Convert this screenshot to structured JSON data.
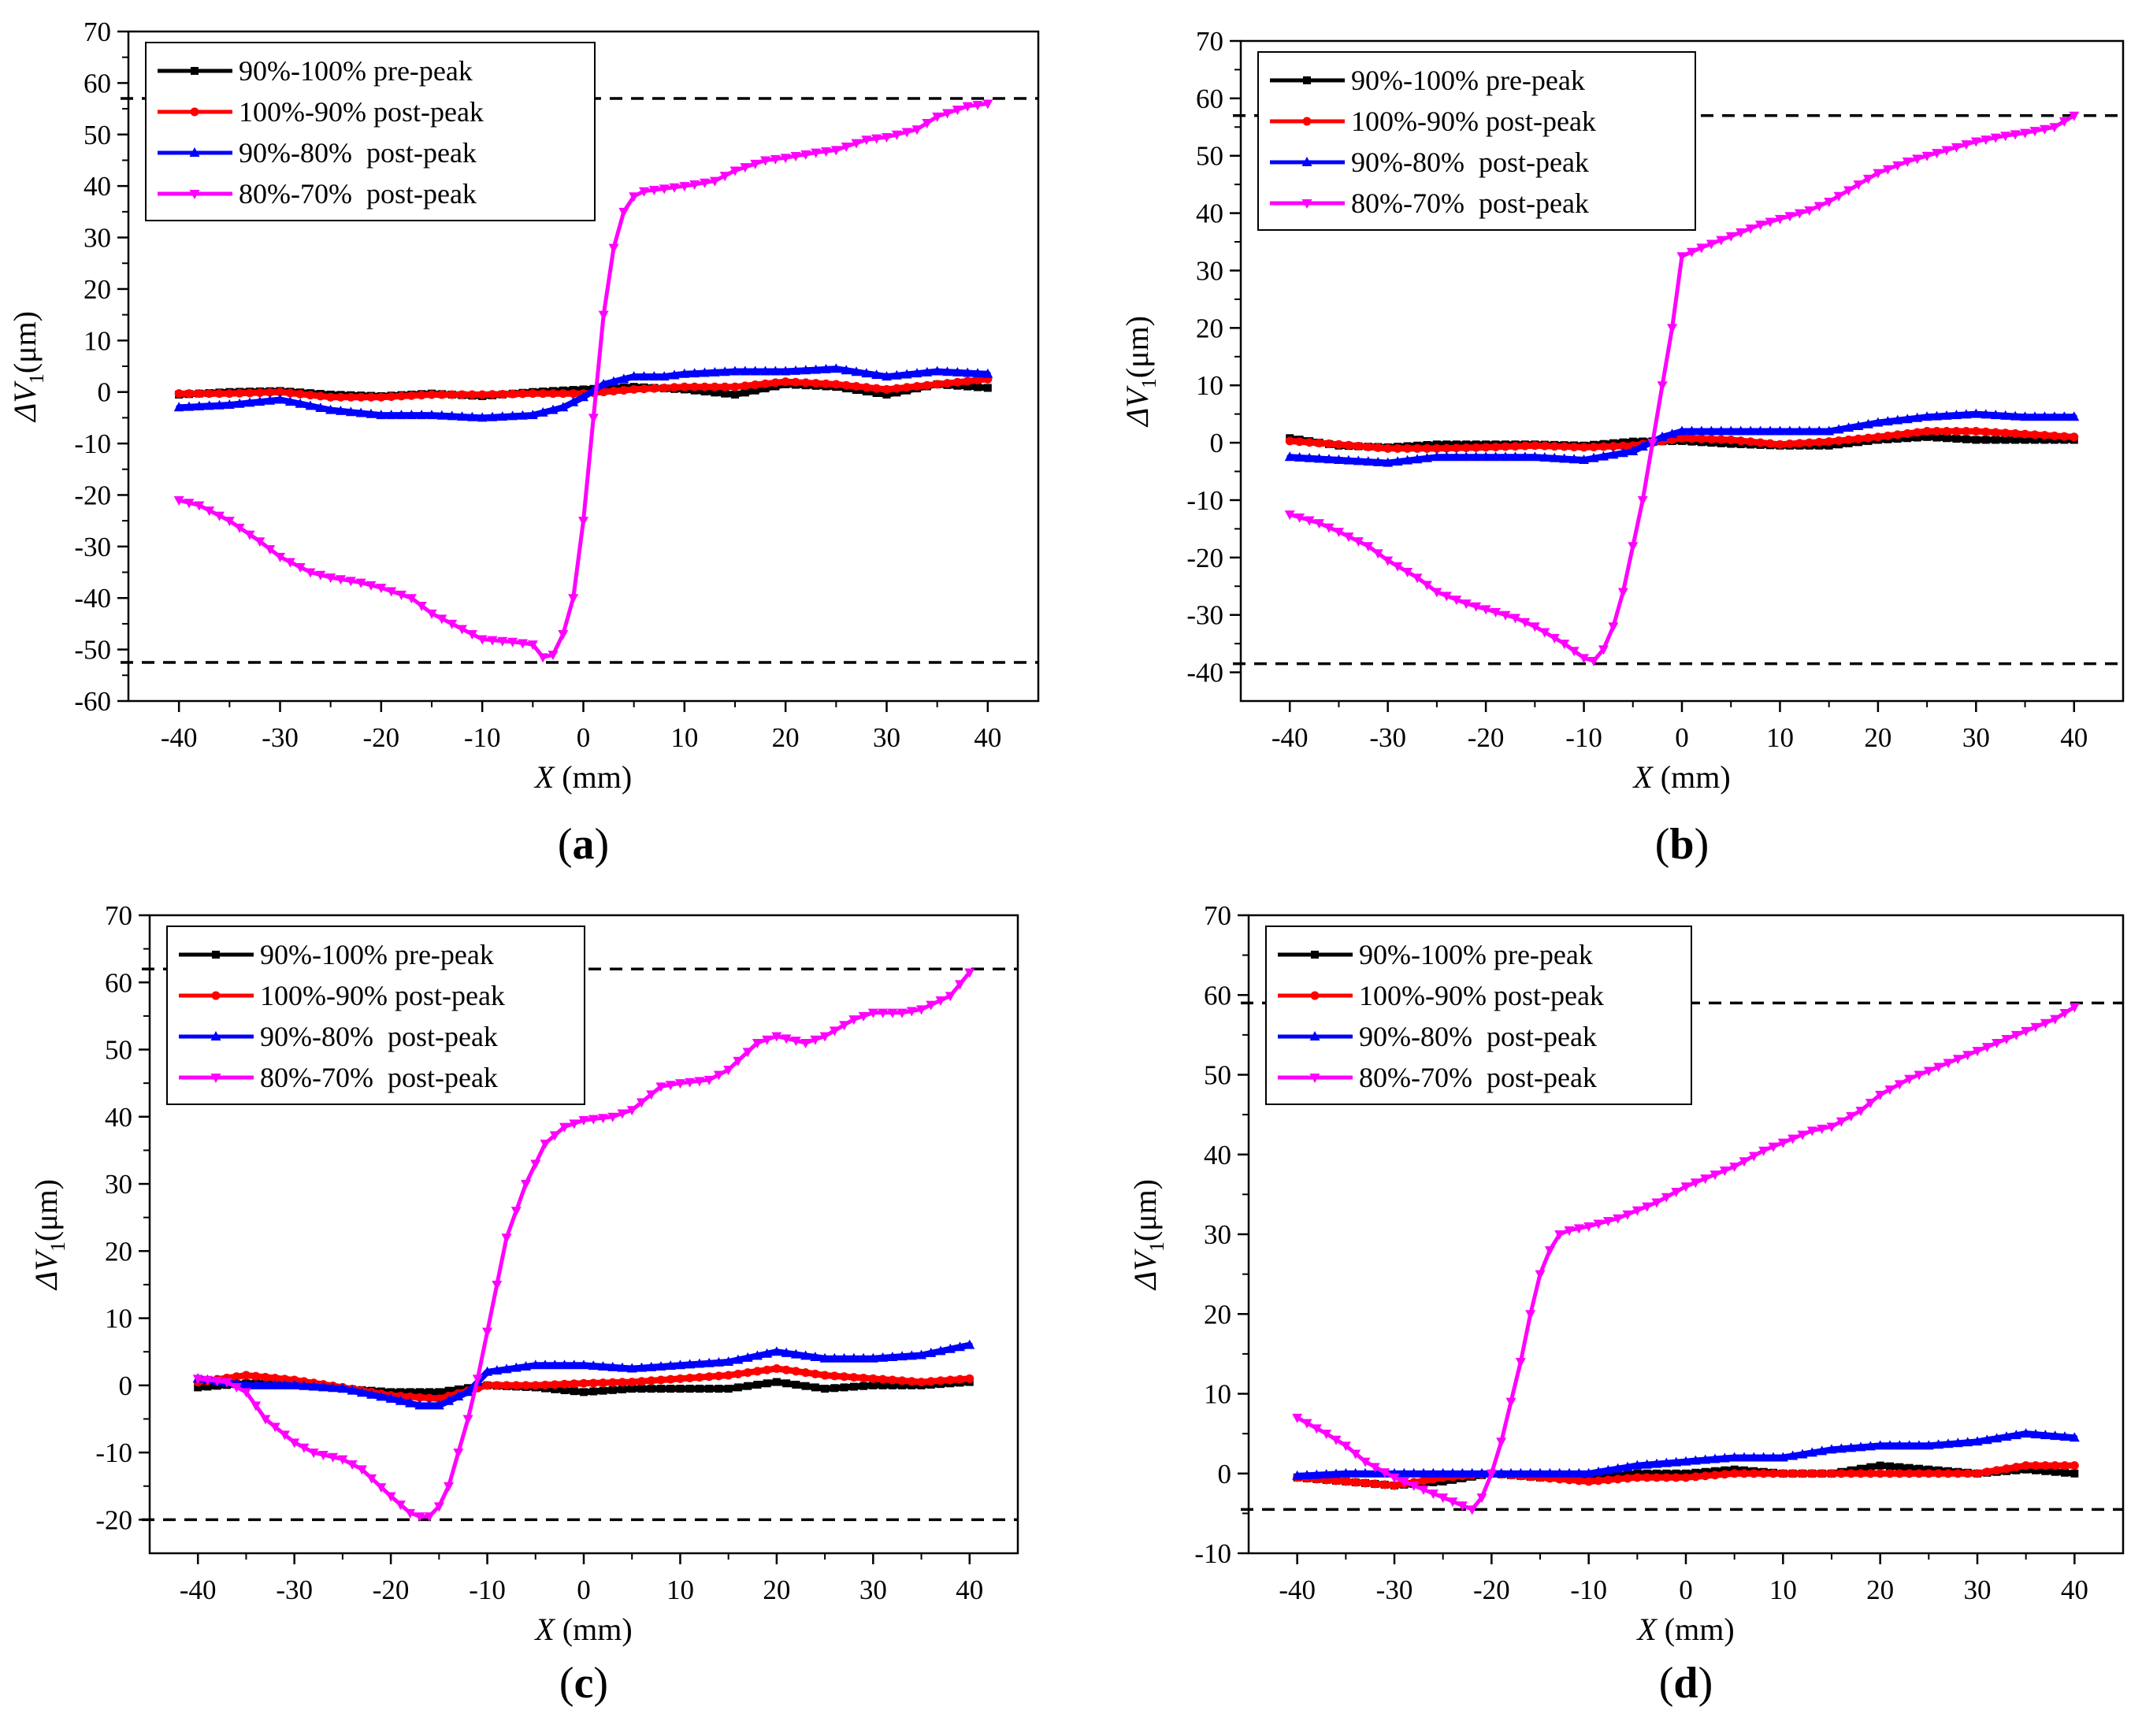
{
  "figure": {
    "xlabel": "X (mm)",
    "ylabel_main": "ΔV",
    "ylabel_sub": "1",
    "ylabel_unit": "(μm)"
  },
  "legend_entries": [
    "90%-100% pre-peak",
    "100%-90% post-peak",
    "90%-80%  post-peak",
    "80%-70%  post-peak"
  ],
  "colors": {
    "pre_peak_90_100": "#000000",
    "post_peak_100_90": "#ff0000",
    "post_peak_90_80": "#0000ff",
    "post_peak_80_70": "#ff00ff",
    "dashed_line": "#000000"
  },
  "chart_data": [
    {
      "panel": "(a)",
      "type": "line",
      "xlabel": "X (mm)",
      "ylabel": "ΔV1 (μm)",
      "xlim": [
        -45,
        45
      ],
      "ylim": [
        -60,
        70
      ],
      "xticks": [
        -40,
        -30,
        -20,
        -10,
        0,
        10,
        20,
        30,
        40
      ],
      "yticks": [
        -60,
        -50,
        -40,
        -30,
        -20,
        -10,
        0,
        10,
        20,
        30,
        40,
        50,
        60,
        70
      ],
      "hlines": [
        57,
        -52.5
      ],
      "series": [
        {
          "name": "90%-100% pre-peak",
          "x": [
            -40,
            -35,
            -30,
            -25,
            -20,
            -15,
            -10,
            -5,
            0,
            5,
            10,
            15,
            20,
            25,
            30,
            35,
            40
          ],
          "y": [
            -0.5,
            0,
            0.2,
            -0.5,
            -0.8,
            -0.3,
            -0.8,
            0,
            0.5,
            1,
            0.5,
            -0.5,
            1.5,
            1,
            -0.5,
            1.5,
            0.8
          ]
        },
        {
          "name": "100%-90% post-peak",
          "x": [
            -40,
            -35,
            -30,
            -25,
            -20,
            -15,
            -10,
            -5,
            0,
            5,
            10,
            15,
            20,
            25,
            30,
            35,
            40
          ],
          "y": [
            -0.3,
            -0.3,
            0,
            -1,
            -1,
            -0.5,
            -0.5,
            -0.3,
            -0.3,
            0.5,
            1,
            1,
            2,
            1.5,
            0.5,
            1.5,
            2.5
          ]
        },
        {
          "name": "90%-80%  post-peak",
          "x": [
            -40,
            -35,
            -30,
            -25,
            -20,
            -15,
            -10,
            -5,
            -2,
            0,
            2,
            5,
            8,
            10,
            15,
            20,
            25,
            30,
            35,
            40
          ],
          "y": [
            -3,
            -2.5,
            -1.5,
            -3.5,
            -4.5,
            -4.5,
            -5,
            -4.5,
            -3,
            -1,
            1.5,
            3,
            3,
            3.5,
            4,
            4,
            4.5,
            3,
            4,
            3.5
          ]
        },
        {
          "name": "80%-70%  post-peak",
          "x": [
            -40,
            -38,
            -35,
            -32,
            -30,
            -27,
            -25,
            -22,
            -20,
            -17,
            -15,
            -12,
            -10,
            -7,
            -5,
            -4,
            -3,
            -2,
            -1,
            0,
            1,
            2,
            3,
            4,
            5,
            6,
            8,
            10,
            13,
            15,
            18,
            20,
            23,
            25,
            28,
            30,
            33,
            35,
            38,
            40
          ],
          "y": [
            -21,
            -22,
            -25,
            -29,
            -32,
            -35,
            -36,
            -37,
            -38,
            -40,
            -43,
            -46,
            -48,
            -48.5,
            -49,
            -51.5,
            -51,
            -47,
            -40,
            -25,
            -5,
            15,
            28,
            35,
            38,
            39,
            39.5,
            40,
            41,
            43,
            45,
            45.5,
            46.5,
            47,
            49,
            49.5,
            51,
            53.5,
            55.5,
            56
          ]
        }
      ]
    },
    {
      "panel": "(b)",
      "type": "line",
      "xlabel": "X (mm)",
      "ylabel": "ΔV1 (μm)",
      "xlim": [
        -45,
        45
      ],
      "ylim": [
        -45,
        70
      ],
      "xticks": [
        -40,
        -30,
        -20,
        -10,
        0,
        10,
        20,
        30,
        40
      ],
      "yticks": [
        -40,
        -30,
        -20,
        -10,
        0,
        10,
        20,
        30,
        40,
        50,
        60,
        70
      ],
      "hlines": [
        57,
        -38.5
      ],
      "series": [
        {
          "name": "90%-100% pre-peak",
          "x": [
            -40,
            -35,
            -30,
            -25,
            -20,
            -15,
            -10,
            -5,
            0,
            5,
            10,
            15,
            20,
            25,
            30,
            35,
            40
          ],
          "y": [
            0.8,
            -0.5,
            -0.8,
            -0.3,
            -0.3,
            -0.3,
            -0.5,
            0.2,
            0.3,
            -0.2,
            -0.5,
            -0.5,
            0.5,
            1,
            0.5,
            0.5,
            0.5
          ]
        },
        {
          "name": "100%-90% post-peak",
          "x": [
            -40,
            -35,
            -30,
            -25,
            -20,
            -15,
            -10,
            -5,
            0,
            5,
            10,
            15,
            20,
            25,
            30,
            35,
            40
          ],
          "y": [
            0.3,
            -0.3,
            -1,
            -1,
            -0.8,
            -0.5,
            -0.8,
            -0.5,
            0.8,
            0.5,
            -0.3,
            0.2,
            1,
            2,
            2,
            1.5,
            1
          ]
        },
        {
          "name": "90%-80%  post-peak",
          "x": [
            -40,
            -35,
            -30,
            -25,
            -20,
            -15,
            -10,
            -5,
            -2,
            0,
            5,
            10,
            15,
            20,
            25,
            30,
            35,
            40
          ],
          "y": [
            -2.5,
            -3,
            -3.5,
            -2.5,
            -2.5,
            -2.5,
            -3,
            -1.5,
            1,
            2,
            2,
            2,
            2,
            3.5,
            4.5,
            5,
            4.5,
            4.5
          ]
        },
        {
          "name": "80%-70%  post-peak",
          "x": [
            -40,
            -37,
            -35,
            -32,
            -30,
            -27,
            -25,
            -22,
            -20,
            -17,
            -15,
            -12,
            -10,
            -9,
            -8,
            -7,
            -6,
            -5,
            -4,
            -3,
            -2,
            -1,
            0,
            2,
            5,
            8,
            10,
            13,
            15,
            18,
            20,
            23,
            25,
            28,
            30,
            33,
            35,
            38,
            40
          ],
          "y": [
            -12.5,
            -14,
            -15.5,
            -18,
            -20.5,
            -23.5,
            -26,
            -28,
            -29,
            -30.5,
            -32,
            -35,
            -37.5,
            -38,
            -36,
            -32,
            -26,
            -18,
            -10,
            0,
            10,
            20,
            32.5,
            34,
            36,
            38,
            39,
            40.5,
            42,
            45,
            47,
            49,
            50,
            51.5,
            52.5,
            53.5,
            54,
            55,
            57
          ]
        }
      ]
    },
    {
      "panel": "(c)",
      "type": "line",
      "xlabel": "X (mm)",
      "ylabel": "ΔV1 (μm)",
      "xlim": [
        -45,
        45
      ],
      "ylim": [
        -25,
        70
      ],
      "xticks": [
        -40,
        -30,
        -20,
        -10,
        0,
        10,
        20,
        30,
        40
      ],
      "yticks": [
        -20,
        -10,
        0,
        10,
        20,
        30,
        40,
        50,
        60,
        70
      ],
      "hlines": [
        62,
        -20
      ],
      "series": [
        {
          "name": "90%-100% pre-peak",
          "x": [
            -40,
            -35,
            -30,
            -25,
            -20,
            -15,
            -10,
            -5,
            0,
            5,
            10,
            15,
            20,
            25,
            30,
            35,
            40
          ],
          "y": [
            -0.3,
            0.3,
            0.3,
            -0.5,
            -1,
            -1,
            0,
            -0.3,
            -1,
            -0.5,
            -0.5,
            -0.5,
            0.5,
            -0.5,
            0,
            0,
            0.5
          ]
        },
        {
          "name": "100%-90% post-peak",
          "x": [
            -40,
            -35,
            -30,
            -25,
            -20,
            -15,
            -10,
            -5,
            0,
            5,
            10,
            15,
            20,
            25,
            30,
            35,
            40
          ],
          "y": [
            0.5,
            1.5,
            0.8,
            -0.3,
            -1.5,
            -2,
            0,
            0,
            0.3,
            0.5,
            1,
            1.5,
            2.5,
            1.5,
            1,
            0.5,
            1
          ]
        },
        {
          "name": "90%-80%  post-peak",
          "x": [
            -40,
            -35,
            -30,
            -25,
            -20,
            -17,
            -15,
            -12,
            -10,
            -5,
            0,
            5,
            10,
            15,
            20,
            25,
            30,
            35,
            40
          ],
          "y": [
            1,
            0,
            0,
            -0.5,
            -2,
            -3,
            -3,
            -1,
            2,
            3,
            3,
            2.5,
            3,
            3.5,
            5,
            4,
            4,
            4.5,
            6
          ]
        },
        {
          "name": "80%-70%  post-peak",
          "x": [
            -40,
            -37,
            -35,
            -33,
            -30,
            -28,
            -25,
            -23,
            -20,
            -18,
            -17,
            -16,
            -15,
            -14,
            -13,
            -12,
            -11,
            -10,
            -9,
            -8,
            -6,
            -4,
            -2,
            0,
            3,
            5,
            8,
            10,
            13,
            15,
            18,
            20,
            23,
            25,
            28,
            30,
            33,
            35,
            38,
            40
          ],
          "y": [
            1,
            0.5,
            -1,
            -5,
            -8.5,
            -10,
            -11,
            -12.5,
            -16.5,
            -19,
            -19.5,
            -19.5,
            -18,
            -15,
            -10,
            -5,
            1,
            8,
            15,
            22,
            30,
            36,
            38.5,
            39.5,
            40,
            41,
            44.5,
            45,
            45.5,
            47,
            51,
            52,
            51,
            52,
            54.5,
            55.5,
            55.5,
            56,
            58,
            61.5
          ]
        }
      ]
    },
    {
      "panel": "(d)",
      "type": "line",
      "xlabel": "X (mm)",
      "ylabel": "ΔV1 (μm)",
      "xlim": [
        -45,
        45
      ],
      "ylim": [
        -10,
        70
      ],
      "xticks": [
        -40,
        -30,
        -20,
        -10,
        0,
        10,
        20,
        30,
        40
      ],
      "yticks": [
        -10,
        0,
        10,
        20,
        30,
        40,
        50,
        60,
        70
      ],
      "hlines": [
        59,
        -4.5
      ],
      "series": [
        {
          "name": "90%-100% pre-peak",
          "x": [
            -40,
            -35,
            -30,
            -25,
            -20,
            -15,
            -10,
            -5,
            0,
            5,
            10,
            15,
            20,
            25,
            30,
            35,
            40
          ],
          "y": [
            -0.5,
            -1,
            -1.5,
            -1,
            0,
            -0.5,
            -0.5,
            0,
            0,
            0.5,
            0,
            0,
            1,
            0.5,
            0,
            0.5,
            0
          ]
        },
        {
          "name": "100%-90% post-peak",
          "x": [
            -40,
            -35,
            -30,
            -25,
            -20,
            -15,
            -10,
            -5,
            0,
            5,
            10,
            15,
            20,
            25,
            30,
            35,
            40
          ],
          "y": [
            -0.5,
            -1,
            -1.5,
            -0.5,
            0,
            -0.5,
            -1,
            -0.5,
            -0.5,
            0,
            0,
            0,
            0,
            0,
            0,
            1,
            1
          ]
        },
        {
          "name": "90%-80%  post-peak",
          "x": [
            -40,
            -35,
            -30,
            -25,
            -20,
            -15,
            -10,
            -5,
            0,
            5,
            10,
            15,
            20,
            25,
            30,
            35,
            40
          ],
          "y": [
            -0.3,
            0,
            0,
            0,
            0,
            0,
            0,
            1,
            1.5,
            2,
            2,
            3,
            3.5,
            3.5,
            4,
            5,
            4.5
          ]
        },
        {
          "name": "80%-70%  post-peak",
          "x": [
            -40,
            -37,
            -35,
            -33,
            -30,
            -28,
            -25,
            -23,
            -22,
            -21,
            -20,
            -19,
            -18,
            -17,
            -16,
            -15,
            -14,
            -13,
            -12,
            -10,
            -7,
            -5,
            -3,
            0,
            3,
            5,
            8,
            10,
            13,
            15,
            18,
            20,
            23,
            25,
            28,
            30,
            33,
            35,
            38,
            40
          ],
          "y": [
            7,
            5,
            3.5,
            1.5,
            -0.5,
            -1.5,
            -3,
            -4,
            -4.5,
            -3,
            0,
            4,
            9,
            14,
            20,
            25,
            28,
            30,
            30.5,
            31,
            32,
            33,
            34,
            36,
            37.5,
            38.5,
            40.5,
            41.5,
            43,
            43.5,
            45.5,
            47.5,
            49.5,
            50.5,
            52,
            53,
            54.5,
            55.5,
            57,
            58.5
          ]
        }
      ]
    }
  ]
}
